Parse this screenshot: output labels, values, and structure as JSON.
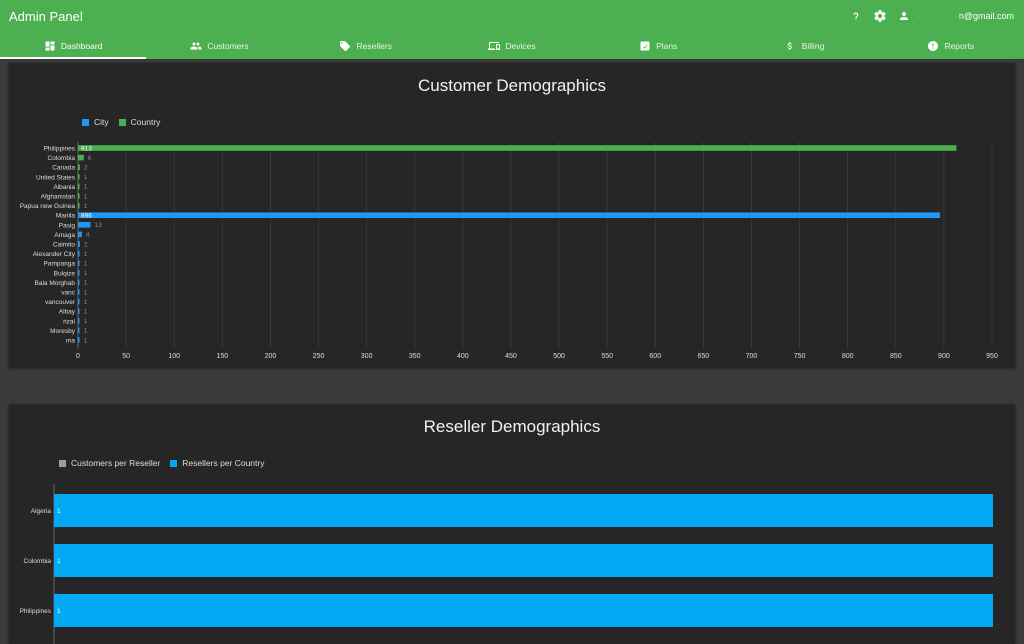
{
  "header": {
    "title": "Admin Panel",
    "help_icon": "help-icon",
    "settings_icon": "gear-icon",
    "account_icon": "person-icon",
    "user_email_masked": "·  ·  ·  ·  ·  ·",
    "user_email_suffix": "n@gmail.com"
  },
  "tabs": [
    {
      "label": "Dashboard",
      "icon": "dashboard-icon",
      "active": true
    },
    {
      "label": "Customers",
      "icon": "people-icon",
      "active": false
    },
    {
      "label": "Resellers",
      "icon": "tag-icon",
      "active": false
    },
    {
      "label": "Devices",
      "icon": "devices-icon",
      "active": false
    },
    {
      "label": "Plans",
      "icon": "plans-icon",
      "active": false
    },
    {
      "label": "Billing",
      "icon": "dollar-icon",
      "active": false
    },
    {
      "label": "Reports",
      "icon": "alert-icon",
      "active": false
    }
  ],
  "colors": {
    "appbar": "#4caf50",
    "city": "#2196f3",
    "country": "#4caf50",
    "customers_per_reseller": "#9e9e9e",
    "resellers_per_country": "#03a9f4"
  },
  "chart_data": [
    {
      "type": "bar",
      "orientation": "horizontal",
      "title": "Customer Demographics",
      "legend_position": "top-left",
      "categories": [
        "Philippines",
        "Colombia",
        "Canada",
        "United States",
        "Albania",
        "Afghanistan",
        "Papua new Guinea",
        "Manila",
        "Pasig",
        "Amaga",
        "Caimito",
        "Alexander City",
        "Pampanga",
        "Bulqize",
        "Bala Morghab",
        "vanc",
        "vancouver",
        "Albay",
        "rizal",
        "Moresby",
        "ma"
      ],
      "series": [
        {
          "name": "City",
          "color": "#2196f3",
          "values": [
            null,
            null,
            null,
            null,
            null,
            null,
            null,
            896,
            13,
            4,
            2,
            1,
            1,
            1,
            1,
            1,
            1,
            1,
            1,
            1,
            1
          ]
        },
        {
          "name": "Country",
          "color": "#4caf50",
          "values": [
            913,
            6,
            2,
            1,
            1,
            1,
            1,
            null,
            null,
            null,
            null,
            null,
            null,
            null,
            null,
            null,
            null,
            null,
            null,
            null,
            null
          ]
        }
      ],
      "xlim": [
        0,
        950
      ],
      "xticks": [
        0,
        50,
        100,
        150,
        200,
        250,
        300,
        350,
        400,
        450,
        500,
        550,
        600,
        650,
        700,
        750,
        800,
        850,
        900,
        950
      ],
      "grid": true
    },
    {
      "type": "bar",
      "orientation": "horizontal",
      "title": "Reseller Demographics",
      "legend_position": "top-left",
      "categories": [
        "Algeria",
        "Colombia",
        "Philippines"
      ],
      "series": [
        {
          "name": "Customers per Reseller",
          "color": "#9e9e9e",
          "values": [
            null,
            null,
            null
          ]
        },
        {
          "name": "Resellers per Country",
          "color": "#03a9f4",
          "values": [
            1,
            1,
            1
          ]
        }
      ],
      "xlim": [
        0,
        1
      ]
    }
  ]
}
